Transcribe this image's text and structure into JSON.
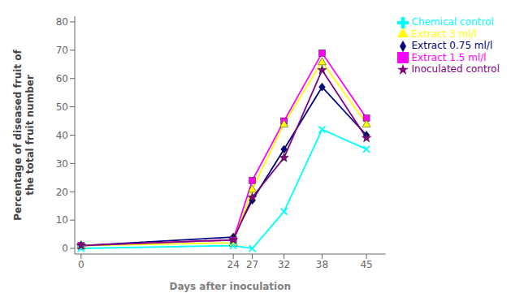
{
  "chart_data": {
    "type": "line",
    "x": [
      0,
      24,
      27,
      32,
      38,
      45
    ],
    "series": [
      {
        "name": "Extract 0.75 ml/l",
        "color": "#000080",
        "marker": "diamond",
        "line_style": "solid",
        "values": [
          1,
          4,
          17,
          35,
          57,
          40
        ]
      },
      {
        "name": "Extract 1.5 ml/l",
        "color": "#FF00FF",
        "marker": "square",
        "line_style": "solid",
        "values": [
          1,
          3,
          24,
          45,
          69,
          46
        ]
      },
      {
        "name": "Extract  3 ml/l",
        "color": "#FFFF00",
        "marker": "triangle",
        "line_style": "solid",
        "values": [
          1,
          2,
          21,
          44,
          66,
          44
        ]
      },
      {
        "name": "Chemical control",
        "color": "#00FFFF",
        "marker": "x",
        "line_style": "solid",
        "values": [
          0,
          1,
          0,
          13,
          42,
          35
        ]
      },
      {
        "name": "Inoculated control",
        "color": "#800080",
        "marker": "star",
        "line_style": "solid",
        "values": [
          1,
          3,
          18,
          32,
          63,
          39
        ]
      }
    ],
    "x_label": "Days after inoculation",
    "y_label": "Percentage of diseased fruit of\nthe total fruit number",
    "xlim": [
      -1,
      48
    ],
    "ylim": [
      -2,
      82
    ],
    "xticks": [
      0,
      24,
      27,
      32,
      38,
      45
    ],
    "yticks": [
      0,
      10,
      20,
      30,
      40,
      50,
      60,
      70,
      80
    ],
    "grid": false,
    "legend": "right"
  }
}
